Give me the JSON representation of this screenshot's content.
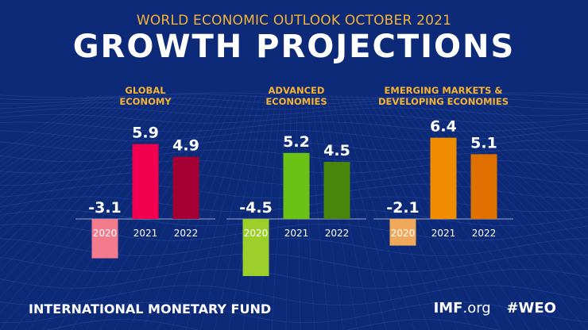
{
  "header": {
    "kicker": "WORLD ECONOMIC OUTLOOK OCTOBER 2021",
    "title": "GROWTH PROJECTIONS"
  },
  "footer": {
    "org": "INTERNATIONAL MONETARY FUND",
    "site_bold": "IMF",
    "site_rest": ".org",
    "hashtag": "#WEO"
  },
  "colors": {
    "background": "#0d2a78",
    "kicker": "#f5b335",
    "panel_title": "#f5b335",
    "text": "#ffffff",
    "axis": "#9aa6c8"
  },
  "chart_data": [
    {
      "type": "bar",
      "title_lines": [
        "GLOBAL",
        "ECONOMY"
      ],
      "categories": [
        "2020",
        "2021",
        "2022"
      ],
      "values": [
        -3.1,
        5.9,
        4.9
      ],
      "labels": [
        "-3.1",
        "5.9",
        "4.9"
      ],
      "colors": [
        "#f47b8e",
        "#f2004f",
        "#a50034"
      ],
      "ylim": [
        -3.5,
        6.5
      ]
    },
    {
      "type": "bar",
      "title_lines": [
        "ADVANCED",
        "ECONOMIES"
      ],
      "categories": [
        "2020",
        "2021",
        "2022"
      ],
      "values": [
        -4.5,
        5.2,
        4.5
      ],
      "labels": [
        "-4.5",
        "5.2",
        "4.5"
      ],
      "colors": [
        "#9ccf2a",
        "#69c214",
        "#4a850e"
      ],
      "ylim": [
        -4.5,
        6.5
      ]
    },
    {
      "type": "bar",
      "title_lines": [
        "EMERGING MARKETS &",
        "DEVELOPING ECONOMIES"
      ],
      "categories": [
        "2020",
        "2021",
        "2022"
      ],
      "values": [
        -2.1,
        6.4,
        5.1
      ],
      "labels": [
        "-2.1",
        "6.4",
        "5.1"
      ],
      "colors": [
        "#f0a85a",
        "#f08c00",
        "#e07000"
      ],
      "ylim": [
        -3.5,
        6.5
      ]
    }
  ]
}
